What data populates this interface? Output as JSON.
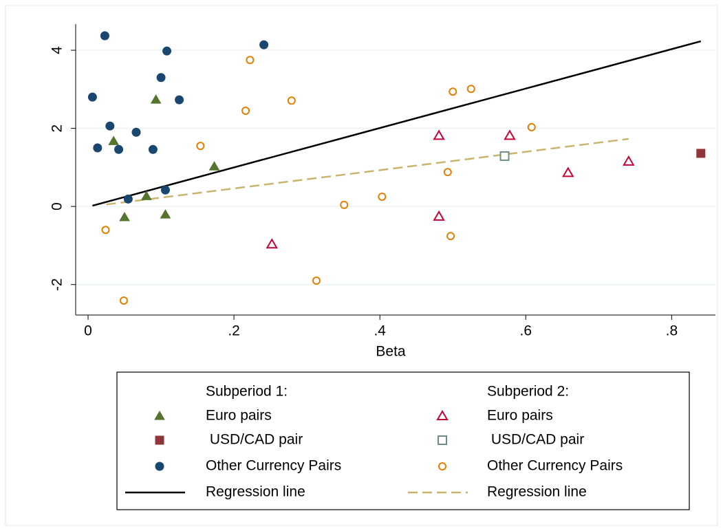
{
  "chart_data": {
    "type": "scatter",
    "xlabel": "Beta",
    "xlim": [
      -0.017,
      0.86
    ],
    "ylim": [
      -2.78,
      4.67
    ],
    "xticks": [
      0,
      {
        "value": 0.2,
        "label": ".2"
      },
      {
        "value": 0.4,
        "label": ".4"
      },
      {
        "value": 0.6,
        "label": ".6"
      },
      {
        "value": 0.8,
        "label": ".8"
      }
    ],
    "yticks": [
      -2,
      0,
      2,
      4
    ],
    "grid": true,
    "groups": [
      {
        "title": "Subperiod 1:",
        "series": [
          {
            "name": "Euro pairs",
            "color": "#55752f",
            "marker": "triangle",
            "filled": true,
            "x": [
              0.035,
              0.093,
              0.173,
              0.08,
              0.05,
              0.106
            ],
            "values": [
              1.67,
              2.73,
              1.02,
              0.26,
              -0.28,
              -0.21
            ]
          },
          {
            "name": " USD/CAD pair",
            "color": "#90353b",
            "marker": "square",
            "filled": true,
            "x": [
              0.84
            ],
            "values": [
              1.36
            ]
          },
          {
            "name": "Other Currency Pairs",
            "color": "#1a476f",
            "marker": "circle",
            "filled": true,
            "x": [
              0.023,
              0.006,
              0.03,
              0.013,
              0.042,
              0.066,
              0.089,
              0.1,
              0.108,
              0.125,
              0.241,
              0.055,
              0.106
            ],
            "values": [
              4.37,
              2.8,
              2.06,
              1.5,
              1.46,
              1.9,
              1.46,
              3.3,
              3.98,
              2.73,
              4.14,
              0.19,
              0.42
            ]
          },
          {
            "name": "Regression line",
            "color": "#000000",
            "marker": "line",
            "dashed": false,
            "x": [
              0.006,
              0.84
            ],
            "values": [
              0.02,
              4.23
            ]
          }
        ]
      },
      {
        "title": "Subperiod 2:",
        "series": [
          {
            "name": "Euro pairs",
            "color": "#c10534",
            "marker": "triangle",
            "filled": false,
            "x": [
              0.252,
              0.481,
              0.481,
              0.578,
              0.658,
              0.741
            ],
            "values": [
              -0.97,
              1.81,
              -0.26,
              1.81,
              0.86,
              1.15
            ]
          },
          {
            "name": " USD/CAD pair",
            "color": "#6e8e84",
            "marker": "square",
            "filled": false,
            "x": [
              0.571
            ],
            "values": [
              1.29
            ]
          },
          {
            "name": "Other Currency Pairs",
            "color": "#e37e00",
            "marker": "circle",
            "filled": false,
            "x": [
              0.024,
              0.049,
              0.154,
              0.216,
              0.222,
              0.279,
              0.313,
              0.351,
              0.403,
              0.493,
              0.497,
              0.5,
              0.525,
              0.608
            ],
            "values": [
              -0.6,
              -2.41,
              1.55,
              2.45,
              3.75,
              2.71,
              -1.9,
              0.04,
              0.25,
              0.88,
              -0.76,
              2.94,
              3.01,
              2.03
            ]
          },
          {
            "name": "Regression line",
            "color": "#c8b46c",
            "marker": "line",
            "dashed": true,
            "x": [
              0.025,
              0.741
            ],
            "values": [
              0.05,
              1.73
            ]
          }
        ]
      }
    ]
  }
}
